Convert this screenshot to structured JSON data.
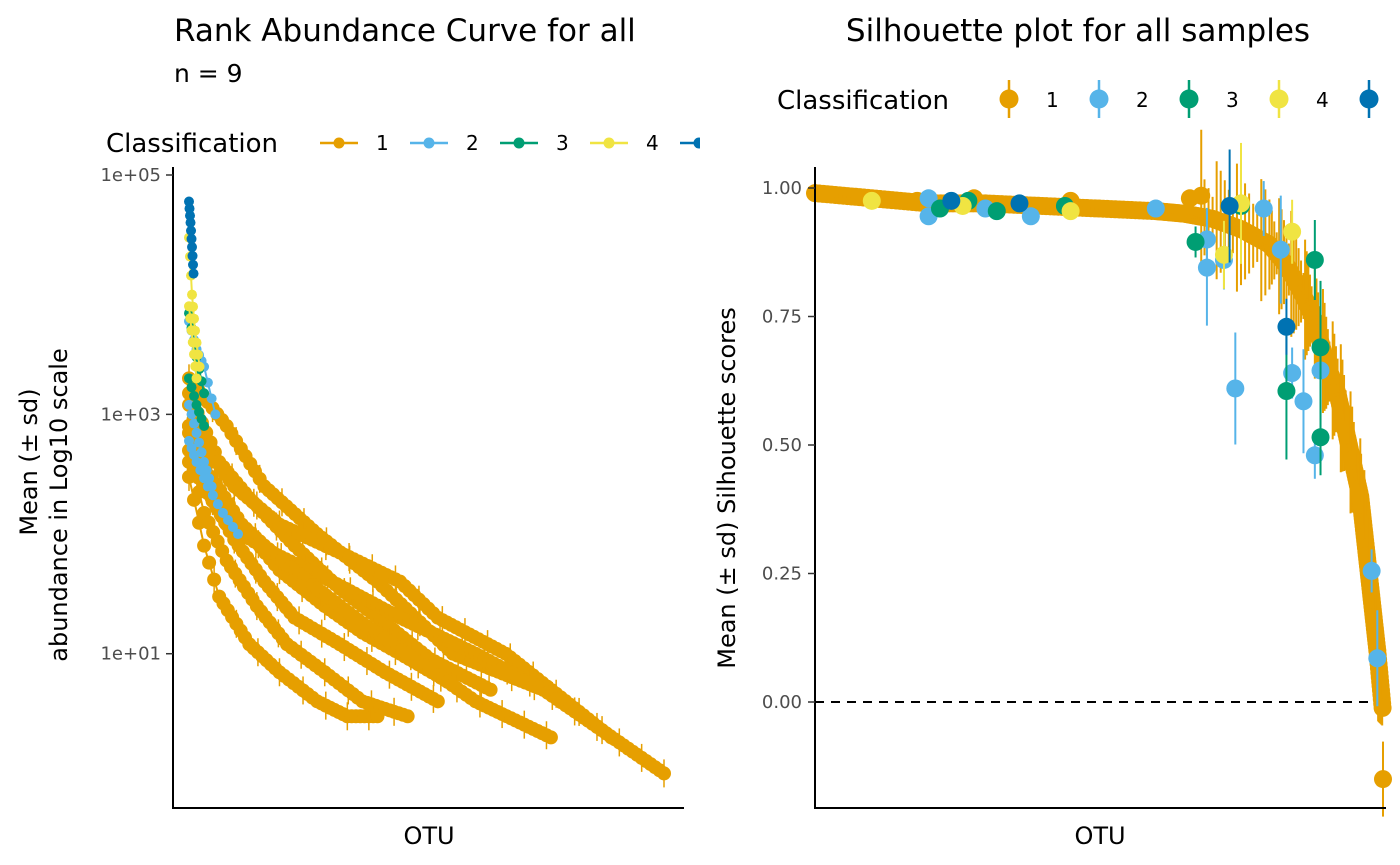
{
  "colors": {
    "c1": "#E69F00",
    "c2": "#56B4E9",
    "c3": "#009E73",
    "c4": "#F0E442",
    "c5": "#0072B2"
  },
  "chart_data": [
    {
      "type": "line",
      "title": "Rank Abundance Curve for all",
      "subtitle": "n =  9",
      "xlabel": "OTU",
      "ylabel_line1": "Mean (± sd)",
      "ylabel_line2": "abundance in Log10 scale",
      "y_scale": "log10",
      "ylim": [
        0.8,
        100000
      ],
      "y_ticks": [
        {
          "value": 100000,
          "label": "1e+05"
        },
        {
          "value": 1000,
          "label": "1e+03"
        },
        {
          "value": 10,
          "label": "1e+01"
        }
      ],
      "grid": false,
      "legend": {
        "title": "Classification",
        "position": "top",
        "entries": [
          {
            "label": "1",
            "color": "#E69F00"
          },
          {
            "label": "2",
            "color": "#56B4E9"
          },
          {
            "label": "3",
            "color": "#009E73"
          },
          {
            "label": "4",
            "color": "#F0E442"
          },
          {
            "label": "",
            "color": "#0072B2"
          }
        ]
      },
      "series": [
        {
          "class": "1",
          "color": "#E69F00",
          "ranks": [
            0,
            20,
            40,
            80,
            120,
            170,
            210,
            250
          ],
          "values": [
            300,
            80,
            30,
            12,
            7,
            4,
            3,
            3
          ]
        },
        {
          "class": "1",
          "color": "#E69F00",
          "ranks": [
            0,
            20,
            50,
            90,
            130,
            180,
            230,
            290
          ],
          "values": [
            500,
            150,
            60,
            25,
            12,
            7,
            4,
            3
          ]
        },
        {
          "class": "1",
          "color": "#E69F00",
          "ranks": [
            0,
            30,
            60,
            100,
            140,
            200,
            260,
            330
          ],
          "values": [
            800,
            200,
            90,
            40,
            20,
            12,
            7,
            4
          ]
        },
        {
          "class": "1",
          "color": "#E69F00",
          "ranks": [
            0,
            30,
            70,
            120,
            180,
            230,
            280,
            340
          ],
          "values": [
            1200,
            300,
            120,
            50,
            25,
            15,
            10,
            6
          ]
        },
        {
          "class": "1",
          "color": "#E69F00",
          "ranks": [
            0,
            40,
            80,
            140,
            200,
            260,
            320,
            400
          ],
          "values": [
            1500,
            400,
            200,
            80,
            35,
            18,
            9,
            5
          ]
        },
        {
          "class": "1",
          "color": "#E69F00",
          "ranks": [
            0,
            50,
            100,
            170,
            250,
            300,
            350,
            470
          ],
          "values": [
            2000,
            800,
            250,
            100,
            40,
            20,
            10,
            5
          ]
        },
        {
          "class": "1",
          "color": "#E69F00",
          "ranks": [
            0,
            60,
            120,
            200,
            280,
            330,
            420,
            560
          ],
          "values": [
            800,
            250,
            120,
            70,
            40,
            20,
            10,
            2
          ]
        },
        {
          "class": "1",
          "color": "#E69F00",
          "ranks": [
            0,
            50,
            110,
            190,
            280,
            380,
            470,
            630
          ],
          "values": [
            400,
            120,
            70,
            40,
            20,
            10,
            5,
            1
          ]
        },
        {
          "class": "1",
          "color": "#E69F00",
          "ranks": [
            0,
            40,
            100,
            170,
            230,
            300,
            380,
            480
          ],
          "values": [
            700,
            180,
            80,
            35,
            18,
            9,
            4,
            2
          ]
        },
        {
          "class": "2",
          "color": "#56B4E9",
          "ranks": [
            0,
            10,
            20,
            35
          ],
          "values": [
            6000,
            3500,
            2500,
            1000
          ]
        },
        {
          "class": "2",
          "color": "#56B4E9",
          "ranks": [
            0,
            10,
            25,
            45,
            65
          ],
          "values": [
            600,
            400,
            250,
            150,
            100
          ]
        },
        {
          "class": "2",
          "color": "#56B4E9",
          "ranks": [
            0,
            10,
            20,
            30
          ],
          "values": [
            1200,
            700,
            400,
            250
          ]
        },
        {
          "class": "3",
          "color": "#009E73",
          "ranks": [
            0,
            10,
            20
          ],
          "values": [
            7000,
            3000,
            1500
          ]
        },
        {
          "class": "3",
          "color": "#009E73",
          "ranks": [
            0,
            10,
            20
          ],
          "values": [
            2000,
            1200,
            800
          ]
        },
        {
          "class": "4",
          "color": "#F0E442",
          "ranks": [
            0,
            4,
            8,
            14
          ],
          "values": [
            30000,
            10000,
            5000,
            2500
          ]
        },
        {
          "class": "4",
          "color": "#F0E442",
          "ranks": [
            0,
            5,
            10
          ],
          "values": [
            8000,
            4000,
            2000
          ]
        },
        {
          "class": "5",
          "color": "#0072B2",
          "ranks": [
            0,
            2,
            4,
            6
          ],
          "values": [
            60000,
            40000,
            25000,
            15000
          ]
        }
      ]
    },
    {
      "type": "scatter",
      "title": "Silhouette plot for all samples",
      "xlabel": "OTU",
      "ylabel": "Mean (± sd) Silhouette scores",
      "ylim": [
        -0.16,
        1.04
      ],
      "y_ticks": [
        {
          "value": 1.0,
          "label": "1.00"
        },
        {
          "value": 0.75,
          "label": "0.75"
        },
        {
          "value": 0.5,
          "label": "0.50"
        },
        {
          "value": 0.25,
          "label": "0.25"
        },
        {
          "value": 0.0,
          "label": "0.00"
        }
      ],
      "reference_line": {
        "y": 0,
        "style": "dashed"
      },
      "grid": false,
      "legend": {
        "title": "Classification",
        "position": "top",
        "entries": [
          {
            "label": "1",
            "color": "#E69F00"
          },
          {
            "label": "2",
            "color": "#56B4E9"
          },
          {
            "label": "3",
            "color": "#009E73"
          },
          {
            "label": "4",
            "color": "#F0E442"
          },
          {
            "label": "",
            "color": "#0072B2"
          }
        ]
      },
      "main_curve": {
        "class": "1",
        "color": "#E69F00",
        "x": [
          0,
          0.1,
          0.2,
          0.3,
          0.4,
          0.5,
          0.6,
          0.65,
          0.7,
          0.75,
          0.8,
          0.83,
          0.86,
          0.88,
          0.9,
          0.92,
          0.94,
          0.96,
          0.97,
          0.98,
          0.99,
          1.0
        ],
        "y": [
          0.99,
          0.98,
          0.97,
          0.97,
          0.965,
          0.96,
          0.955,
          0.95,
          0.94,
          0.92,
          0.89,
          0.85,
          0.79,
          0.74,
          0.66,
          0.6,
          0.5,
          0.4,
          0.3,
          0.2,
          0.1,
          -0.02
        ]
      },
      "points": [
        {
          "class": "1",
          "x": 0.18,
          "y": 0.975
        },
        {
          "class": "1",
          "x": 0.28,
          "y": 0.98
        },
        {
          "class": "1",
          "x": 0.45,
          "y": 0.975
        },
        {
          "class": "1",
          "x": 0.66,
          "y": 0.98
        },
        {
          "class": "1",
          "x": 0.68,
          "y": 0.985
        },
        {
          "class": "1",
          "x": 1.0,
          "y": -0.15
        },
        {
          "class": "2",
          "x": 0.2,
          "y": 0.945
        },
        {
          "class": "2",
          "x": 0.2,
          "y": 0.98
        },
        {
          "class": "2",
          "x": 0.3,
          "y": 0.96
        },
        {
          "class": "2",
          "x": 0.38,
          "y": 0.945
        },
        {
          "class": "2",
          "x": 0.6,
          "y": 0.96
        },
        {
          "class": "2",
          "x": 0.69,
          "y": 0.9
        },
        {
          "class": "2",
          "x": 0.69,
          "y": 0.845
        },
        {
          "class": "2",
          "x": 0.72,
          "y": 0.86
        },
        {
          "class": "2",
          "x": 0.74,
          "y": 0.61
        },
        {
          "class": "2",
          "x": 0.79,
          "y": 0.96
        },
        {
          "class": "2",
          "x": 0.82,
          "y": 0.88
        },
        {
          "class": "2",
          "x": 0.84,
          "y": 0.64
        },
        {
          "class": "2",
          "x": 0.86,
          "y": 0.585
        },
        {
          "class": "2",
          "x": 0.88,
          "y": 0.48
        },
        {
          "class": "2",
          "x": 0.89,
          "y": 0.645
        },
        {
          "class": "2",
          "x": 0.98,
          "y": 0.255
        },
        {
          "class": "2",
          "x": 0.99,
          "y": 0.085
        },
        {
          "class": "3",
          "x": 0.22,
          "y": 0.96
        },
        {
          "class": "3",
          "x": 0.27,
          "y": 0.975
        },
        {
          "class": "3",
          "x": 0.32,
          "y": 0.955
        },
        {
          "class": "3",
          "x": 0.44,
          "y": 0.965
        },
        {
          "class": "3",
          "x": 0.67,
          "y": 0.895
        },
        {
          "class": "3",
          "x": 0.75,
          "y": 0.965
        },
        {
          "class": "3",
          "x": 0.83,
          "y": 0.605
        },
        {
          "class": "3",
          "x": 0.88,
          "y": 0.86
        },
        {
          "class": "3",
          "x": 0.89,
          "y": 0.69
        },
        {
          "class": "3",
          "x": 0.89,
          "y": 0.515
        },
        {
          "class": "4",
          "x": 0.1,
          "y": 0.975
        },
        {
          "class": "4",
          "x": 0.26,
          "y": 0.965
        },
        {
          "class": "4",
          "x": 0.45,
          "y": 0.955
        },
        {
          "class": "4",
          "x": 0.72,
          "y": 0.87
        },
        {
          "class": "4",
          "x": 0.75,
          "y": 0.97
        },
        {
          "class": "4",
          "x": 0.84,
          "y": 0.915
        },
        {
          "class": "5",
          "x": 0.24,
          "y": 0.975
        },
        {
          "class": "5",
          "x": 0.36,
          "y": 0.97
        },
        {
          "class": "5",
          "x": 0.73,
          "y": 0.965
        },
        {
          "class": "5",
          "x": 0.83,
          "y": 0.73
        }
      ]
    }
  ]
}
